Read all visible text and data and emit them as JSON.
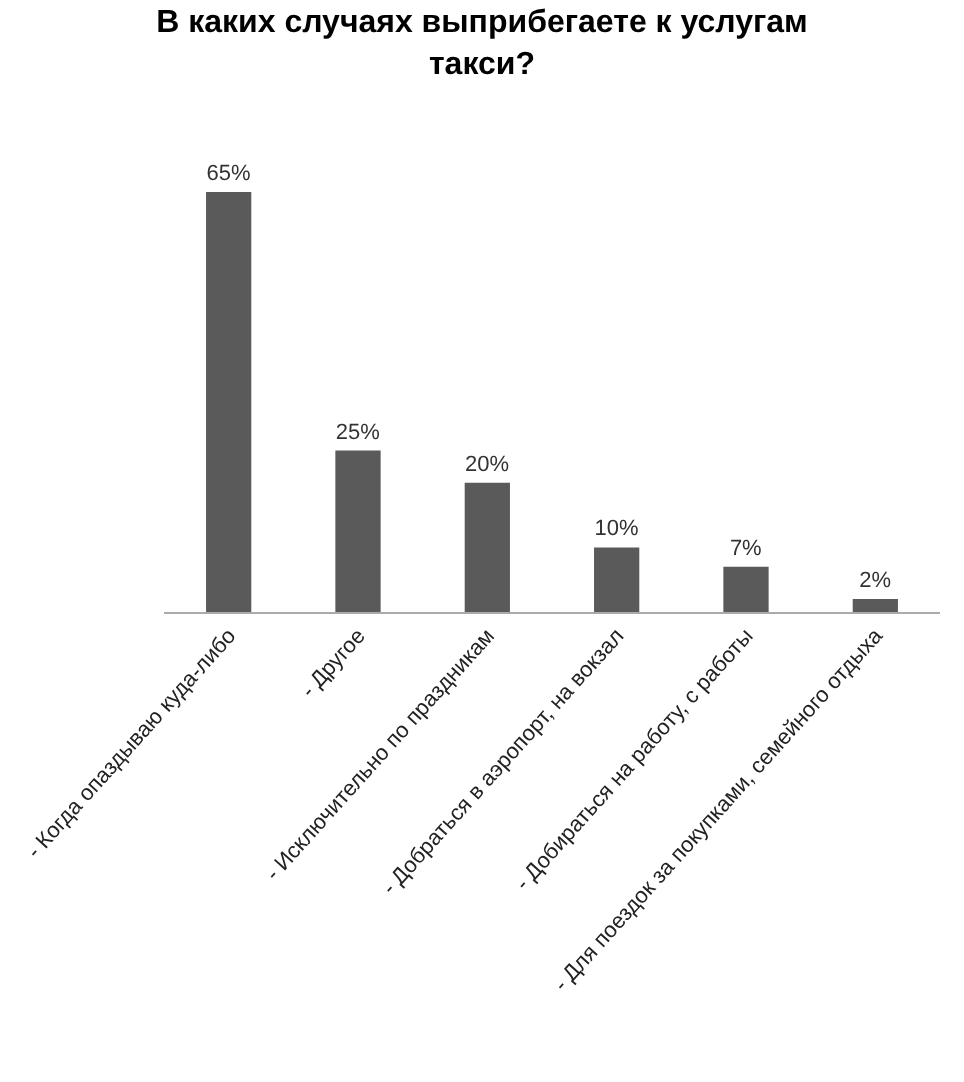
{
  "chart_data": {
    "type": "bar",
    "title": "В каких случаях выприбегаете к услугам такси?",
    "categories": [
      "- Когда опаздываю куда-либо",
      "- Другое",
      "- Исключительно по праздникам",
      "- Добраться в аэропорт, на вокзал",
      "- Добираться на работу, с работы",
      "- Для поездок за покупками, семейного отдыха"
    ],
    "values": [
      65,
      25,
      20,
      10,
      7,
      2
    ],
    "value_labels": [
      "65%",
      "25%",
      "20%",
      "10%",
      "7%",
      "2%"
    ],
    "color": "#5a5a5a"
  }
}
